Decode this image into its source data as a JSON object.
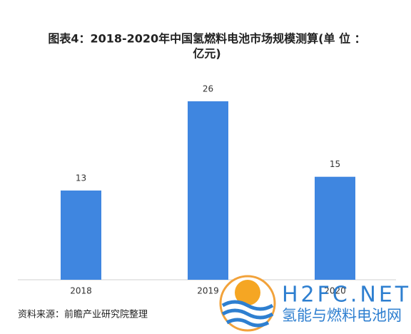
{
  "chart_data": {
    "type": "bar",
    "title": [
      "图表4：2018-2020年中国氢燃料电池市场规模测算(单 位 ：",
      "亿元)"
    ],
    "categories": [
      "2018",
      "2019",
      "2020"
    ],
    "values": [
      13,
      26,
      15
    ],
    "color": "#3f86e0",
    "source": "资料来源：前瞻产业研究院整理",
    "watermark": {
      "site": "H2FC.NET",
      "name": "氢能与燃料电池网"
    }
  }
}
